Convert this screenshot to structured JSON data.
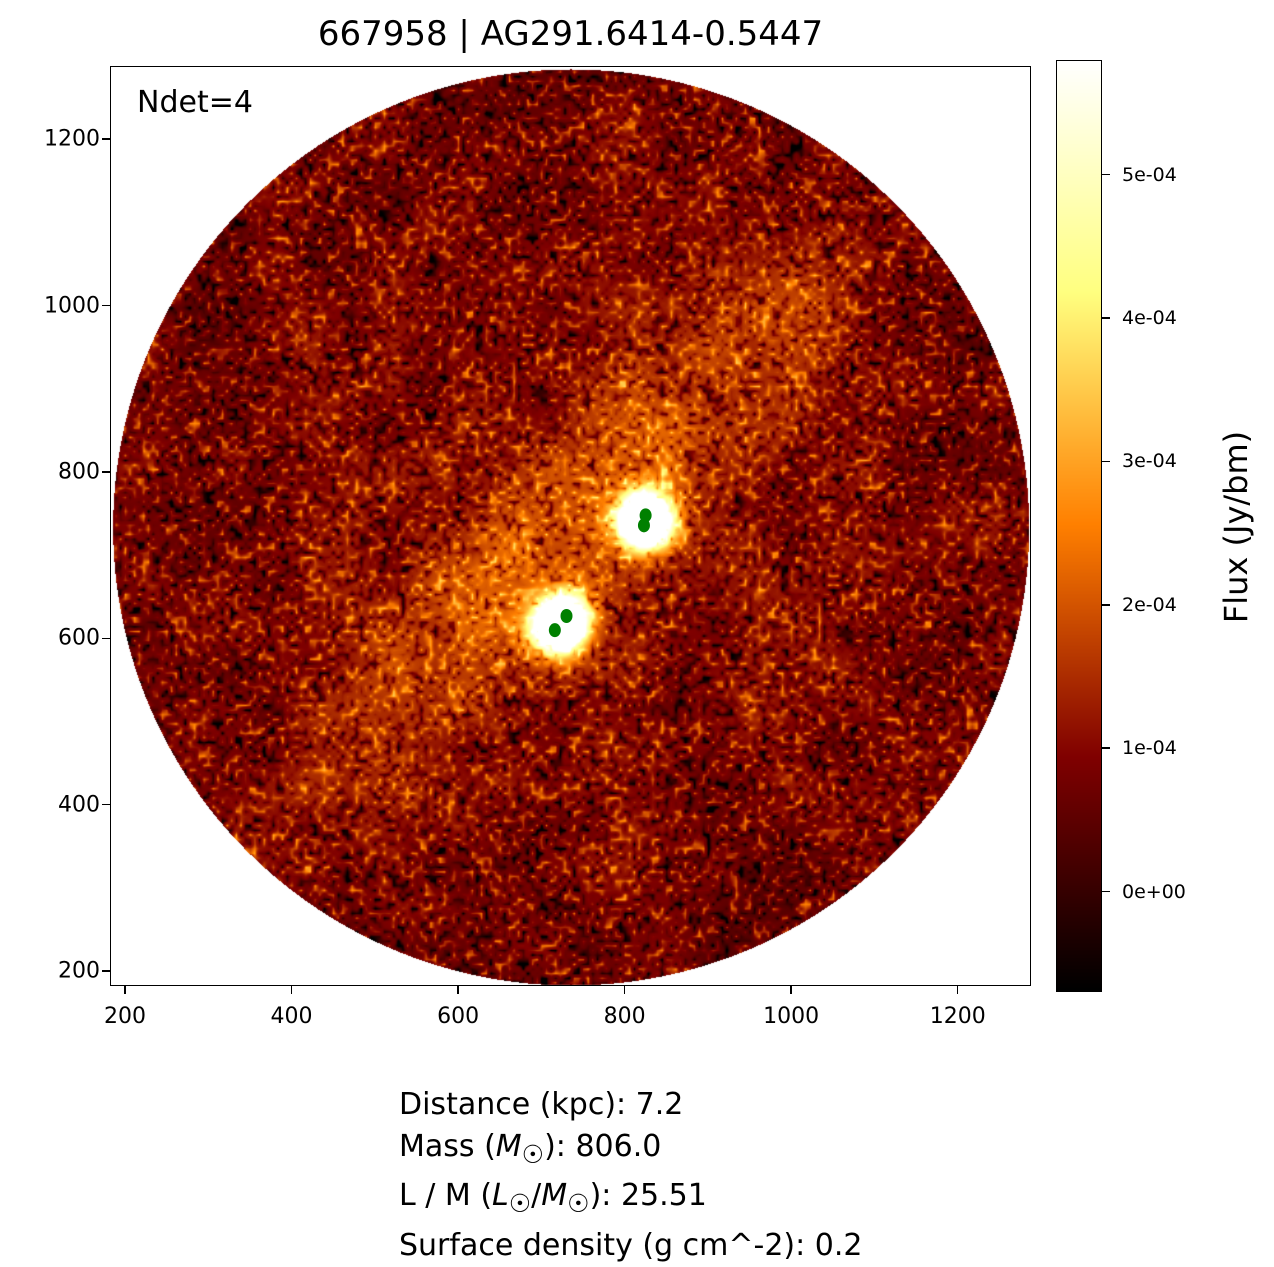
{
  "chart_data": {
    "type": "heatmap",
    "title": "667958 | AG291.6414-0.5447",
    "annotation": "Ndet=4",
    "xlim": [
      182,
      1288
    ],
    "ylim": [
      182,
      1288
    ],
    "x_ticks": [
      "200",
      "400",
      "600",
      "800",
      "1000",
      "1200"
    ],
    "y_ticks": [
      "200",
      "400",
      "600",
      "800",
      "1000",
      "1200"
    ],
    "image_footprint": {
      "shape": "circle",
      "center": [
        734,
        735
      ],
      "radius": 550
    },
    "colormap": "afmhot",
    "colorbar": {
      "label": "Flux (Jy/bm)",
      "range": [
        -7e-05,
        0.00058
      ],
      "ticks": [
        "0e+00",
        "1e-04",
        "2e-04",
        "3e-04",
        "4e-04",
        "5e-04"
      ],
      "tick_values": [
        0,
        0.0001,
        0.0002,
        0.0003,
        0.0004,
        0.0005
      ]
    },
    "detections": {
      "color": "#008000",
      "points": [
        [
          824,
          749
        ],
        [
          822,
          737
        ],
        [
          729,
          628
        ],
        [
          715,
          611
        ]
      ]
    },
    "grid": false
  },
  "info": {
    "distance": "Distance (kpc): 7.2",
    "mass_pre": "Mass (",
    "mass_sym": "M",
    "mass_post": "): 806.0",
    "lm_pre": "L / M (",
    "lm_post": "): 25.51",
    "surface": "Surface density (g cm^-2): 0.2"
  }
}
